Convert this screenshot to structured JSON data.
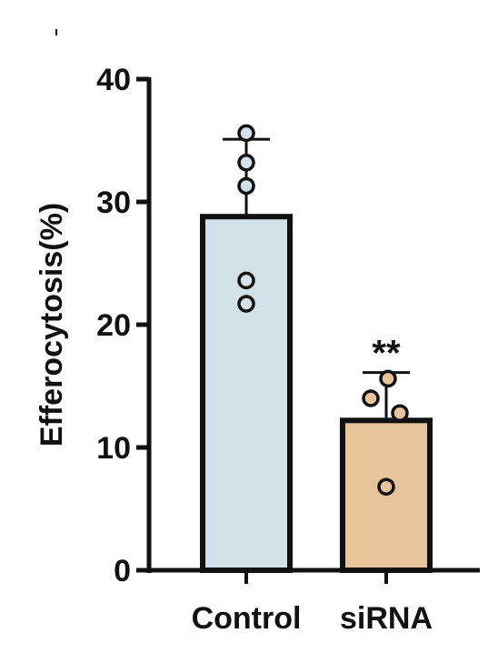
{
  "chart_data": {
    "type": "bar",
    "title": "",
    "xlabel": "",
    "ylabel": "Efferocytosis(%)",
    "ylim": [
      0,
      40
    ],
    "yticks": [
      0,
      10,
      20,
      30,
      40
    ],
    "grid": false,
    "categories": [
      "Control",
      "siRNA"
    ],
    "values": [
      28.8,
      12.2
    ],
    "error_upper": [
      35.1,
      16.1
    ],
    "points": [
      [
        35.6,
        33.2,
        31.3,
        23.6,
        21.7
      ],
      [
        15.6,
        14.0,
        12.8,
        6.8
      ]
    ],
    "significance": [
      "",
      "**"
    ],
    "colors": {
      "bars": [
        "#d3e2e9",
        "#e8c49a"
      ],
      "stroke": "#111111",
      "points_fill": [
        "#d3e2e9",
        "#e8c49a"
      ]
    }
  }
}
